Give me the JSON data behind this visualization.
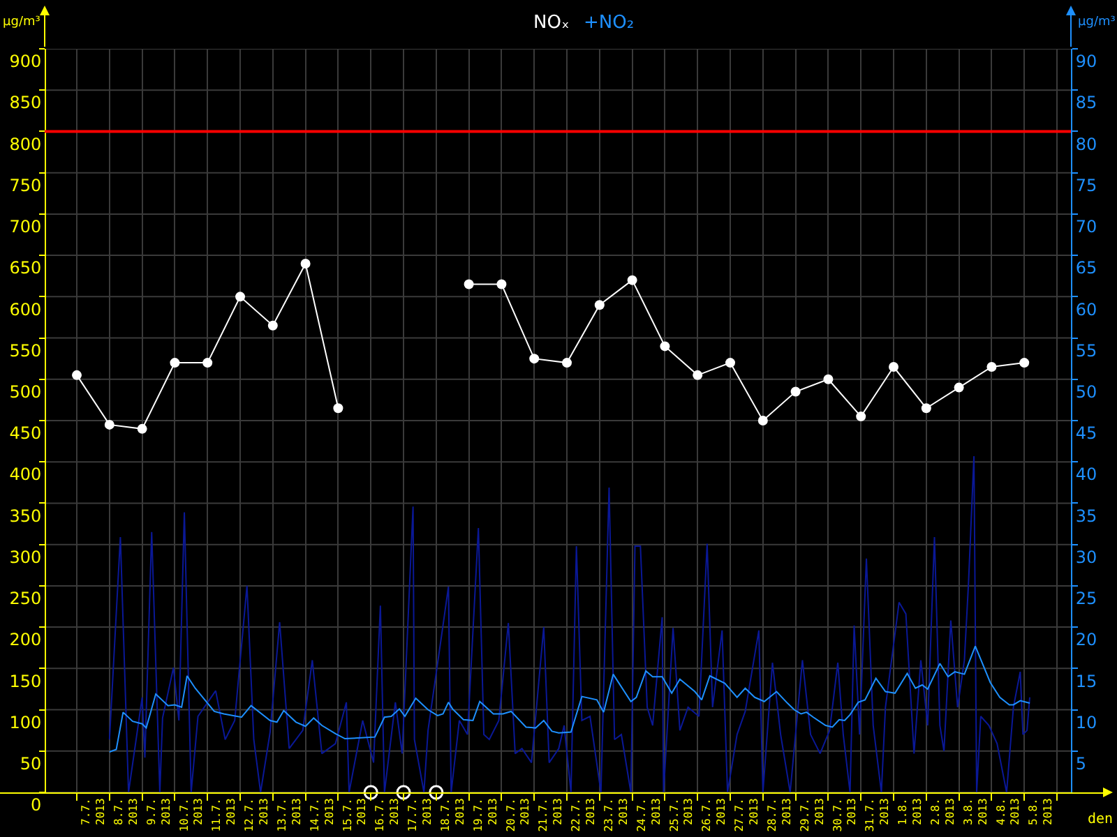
{
  "chart_data": {
    "type": "line",
    "xlabel": "den",
    "ylabel": "µg/m³",
    "y2label": "µg/m³",
    "xlim": [
      "2013-07-04T15:35",
      "2013-08-07T09:50"
    ],
    "xticks": [
      {
        "value": "2013-07-07T12:00",
        "label": "7.7.\n2013"
      },
      {
        "value": "2013-07-08T12:00",
        "label": "8.7.\n2013"
      },
      {
        "value": "2013-07-09T12:00",
        "label": "9.7.\n2013"
      },
      {
        "value": "2013-07-10T12:00",
        "label": "10.7.\n2013"
      },
      {
        "value": "2013-07-11T12:00",
        "label": "11.7.\n2013"
      },
      {
        "value": "2013-07-12T12:00",
        "label": "12.7.\n2013"
      },
      {
        "value": "2013-07-13T12:00",
        "label": "13.7.\n2013"
      },
      {
        "value": "2013-07-14T12:00",
        "label": "14.7.\n2013"
      },
      {
        "value": "2013-07-15T12:00",
        "label": "15.7.\n2013"
      },
      {
        "value": "2013-07-16T12:00",
        "label": "16.7.\n2013"
      },
      {
        "value": "2013-07-17T12:00",
        "label": "17.7.\n2013"
      },
      {
        "value": "2013-07-18T12:00",
        "label": "18.7.\n2013"
      },
      {
        "value": "2013-07-19T12:00",
        "label": "19.7.\n2013"
      },
      {
        "value": "2013-07-20T12:00",
        "label": "20.7.\n2013"
      },
      {
        "value": "2013-07-21T12:00",
        "label": "21.7.\n2013"
      },
      {
        "value": "2013-07-22T12:00",
        "label": "22.7.\n2013"
      },
      {
        "value": "2013-07-23T12:00",
        "label": "23.7.\n2013"
      },
      {
        "value": "2013-07-24T12:00",
        "label": "24.7.\n2013"
      },
      {
        "value": "2013-07-25T12:00",
        "label": "25.7.\n2013"
      },
      {
        "value": "2013-07-26T12:00",
        "label": "26.7.\n2013"
      },
      {
        "value": "2013-07-27T12:00",
        "label": "27.7.\n2013"
      },
      {
        "value": "2013-07-28T12:00",
        "label": "28.7.\n2013"
      },
      {
        "value": "2013-07-29T12:00",
        "label": "29.7.\n2013"
      },
      {
        "value": "2013-07-30T12:00",
        "label": "30.7.\n2013"
      },
      {
        "value": "2013-07-31T12:00",
        "label": "31.7.\n2013"
      },
      {
        "value": "2013-08-01T12:00",
        "label": "1.8.\n2013"
      },
      {
        "value": "2013-08-02T12:00",
        "label": "2.8.\n2013"
      },
      {
        "value": "2013-08-03T12:00",
        "label": "3.8.\n2013"
      },
      {
        "value": "2013-08-04T12:00",
        "label": "4.8.\n2013"
      },
      {
        "value": "2013-08-05T12:00",
        "label": "5.8.\n2013"
      }
    ],
    "ylim": [
      0,
      900
    ],
    "yticks": [
      0,
      50,
      100,
      150,
      200,
      250,
      300,
      350,
      400,
      450,
      500,
      550,
      600,
      650,
      700,
      750,
      800,
      850,
      900
    ],
    "y2lim": [
      0,
      90
    ],
    "y2ticks": [
      5,
      10,
      15,
      20,
      25,
      30,
      35,
      40,
      45,
      50,
      55,
      60,
      65,
      70,
      75,
      80,
      85,
      90
    ],
    "grid": true,
    "ref_lines": [
      {
        "axis": "y",
        "value": 800,
        "color": "#ff0000"
      }
    ],
    "series": [
      {
        "axis": "y2",
        "color": "#0a1896",
        "marker": "none",
        "x": [
          "2013-07-08T00:00",
          "2013-07-08T08:00",
          "2013-07-08T14:00",
          "2013-07-09T00:00",
          "2013-07-09T02:00",
          "2013-07-09T07:00",
          "2013-07-09T13:00",
          "2013-07-09T15:00",
          "2013-07-09T23:00",
          "2013-07-10T03:00",
          "2013-07-10T07:00",
          "2013-07-10T12:00",
          "2013-07-10T17:00",
          "2013-07-11T06:00",
          "2013-07-11T13:00",
          "2013-07-11T20:00",
          "2013-07-12T05:00",
          "2013-07-12T10:00",
          "2013-07-12T15:00",
          "2013-07-12T22:00",
          "2013-07-13T05:00",
          "2013-07-13T12:00",
          "2013-07-13T22:00",
          "2013-07-14T05:00",
          "2013-07-14T12:00",
          "2013-07-14T22:00",
          "2013-07-15T06:00",
          "2013-07-15T08:00",
          "2013-07-15T18:00",
          "2013-07-16T02:00",
          "2013-07-16T07:00",
          "2013-07-16T10:00",
          "2013-07-16T18:00",
          "2013-07-16T23:00",
          "2013-07-17T07:00",
          "2013-07-17T08:00",
          "2013-07-17T15:00",
          "2013-07-17T18:00",
          "2013-07-18T05:00",
          "2013-07-18T09:00",
          "2013-07-18T11:00",
          "2013-07-18T17:00",
          "2013-07-18T23:00",
          "2013-07-19T07:00",
          "2013-07-19T11:00",
          "2013-07-19T15:00",
          "2013-07-19T22:00",
          "2013-07-20T05:00",
          "2013-07-20T10:00",
          "2013-07-20T15:00",
          "2013-07-20T22:00",
          "2013-07-21T07:00",
          "2013-07-21T11:00",
          "2013-07-21T18:00",
          "2013-07-21T22:00",
          "2013-07-22T03:00",
          "2013-07-22T07:00",
          "2013-07-22T11:00",
          "2013-07-22T17:00",
          "2013-07-23T01:00",
          "2013-07-23T07:00",
          "2013-07-23T11:00",
          "2013-07-23T16:00",
          "2013-07-23T23:00",
          "2013-07-24T02:00",
          "2013-07-24T06:00",
          "2013-07-24T11:00",
          "2013-07-24T15:00",
          "2013-07-24T22:00",
          "2013-07-24T23:00",
          "2013-07-25T06:00",
          "2013-07-25T11:00",
          "2013-07-25T17:00",
          "2013-07-26T01:00",
          "2013-07-26T07:00",
          "2013-07-26T11:00",
          "2013-07-26T18:00",
          "2013-07-26T22:00",
          "2013-07-27T05:00",
          "2013-07-27T11:00",
          "2013-07-27T21:00",
          "2013-07-28T00:00",
          "2013-07-28T07:00",
          "2013-07-28T13:00",
          "2013-07-28T20:00",
          "2013-07-29T05:00",
          "2013-07-29T11:00",
          "2013-07-29T18:00",
          "2013-07-30T01:00",
          "2013-07-30T07:00",
          "2013-07-30T11:00",
          "2013-07-30T16:00",
          "2013-07-30T19:00",
          "2013-07-30T23:00",
          "2013-07-31T04:00",
          "2013-07-31T09:00",
          "2013-07-31T15:00",
          "2013-07-31T18:00",
          "2013-08-01T04:00",
          "2013-08-01T09:00",
          "2013-08-01T15:00",
          "2013-08-01T20:00",
          "2013-08-02T01:00",
          "2013-08-02T06:00",
          "2013-08-02T10:00",
          "2013-08-02T13:00",
          "2013-08-02T18:00",
          "2013-08-02T23:00",
          "2013-08-03T04:00",
          "2013-08-03T07:00",
          "2013-08-03T11:00",
          "2013-08-03T13:00",
          "2013-08-03T16:00",
          "2013-08-03T22:00",
          "2013-08-04T04:00",
          "2013-08-04T11:00",
          "2013-08-04T16:00",
          "2013-08-04T21:00",
          "2013-08-04T23:00",
          "2013-08-05T02:00",
          "2013-08-05T04:00"
        ],
        "values": [
          6.4,
          30.9,
          0,
          11.5,
          4.2,
          31.5,
          0,
          9,
          15.1,
          8.7,
          33.9,
          0,
          9.2,
          12.3,
          6.4,
          8.7,
          25,
          6.4,
          0,
          7.3,
          20.6,
          5.3,
          7.5,
          16,
          4.7,
          5.9,
          10.9,
          0,
          8.7,
          3.6,
          22.6,
          0,
          10.9,
          4.7,
          34.6,
          6.4,
          0,
          7.5,
          20.2,
          24.9,
          0,
          8.7,
          7,
          32,
          7,
          6.4,
          8.7,
          20.5,
          4.7,
          5.3,
          3.6,
          20,
          3.6,
          5.3,
          8.1,
          0,
          29.8,
          8.7,
          9.2,
          0,
          36.9,
          6.4,
          7,
          0,
          29.8,
          29.8,
          10.3,
          8.1,
          21.2,
          0,
          19.9,
          7.5,
          10.3,
          9.2,
          30.1,
          10.3,
          19.6,
          0,
          7,
          9.8,
          19.6,
          0,
          15.7,
          7,
          0,
          16,
          7,
          4.7,
          7.5,
          15.7,
          7,
          0,
          20.2,
          7,
          28.3,
          8.1,
          0,
          10.3,
          23,
          21.6,
          4.7,
          16,
          8.1,
          30.9,
          8.1,
          5,
          20.8,
          10.3,
          16,
          25.3,
          40.7,
          0,
          9.2,
          8.1,
          5.9,
          0,
          10.3,
          14.6,
          7,
          7.5,
          11.5
        ]
      },
      {
        "name": "+NO₂",
        "axis": "y2",
        "color": "#1e90ff",
        "marker": "none",
        "x": [
          "2013-07-08T00:00",
          "2013-07-08T05:00",
          "2013-07-08T10:00",
          "2013-07-08T17:00",
          "2013-07-09T00:00",
          "2013-07-09T03:00",
          "2013-07-09T10:00",
          "2013-07-09T19:00",
          "2013-07-10T00:00",
          "2013-07-10T05:00",
          "2013-07-10T09:00",
          "2013-07-10T15:00",
          "2013-07-11T05:00",
          "2013-07-11T12:00",
          "2013-07-12T01:00",
          "2013-07-12T08:00",
          "2013-07-12T22:00",
          "2013-07-13T03:00",
          "2013-07-13T08:00",
          "2013-07-13T17:00",
          "2013-07-14T00:00",
          "2013-07-14T06:00",
          "2013-07-14T12:00",
          "2013-07-14T22:00",
          "2013-07-15T05:00",
          "2013-07-16T03:00",
          "2013-07-16T10:00",
          "2013-07-16T15:00",
          "2013-07-16T21:00",
          "2013-07-17T01:00",
          "2013-07-17T05:00",
          "2013-07-17T09:00",
          "2013-07-17T18:00",
          "2013-07-18T01:00",
          "2013-07-18T05:00",
          "2013-07-18T09:00",
          "2013-07-18T12:00",
          "2013-07-18T20:00",
          "2013-07-19T03:00",
          "2013-07-19T08:00",
          "2013-07-19T18:00",
          "2013-07-20T01:00",
          "2013-07-20T07:00",
          "2013-07-20T18:00",
          "2013-07-21T01:00",
          "2013-07-21T07:00",
          "2013-07-21T13:00",
          "2013-07-21T18:00",
          "2013-07-22T03:00",
          "2013-07-22T11:00",
          "2013-07-22T22:00",
          "2013-07-23T03:00",
          "2013-07-23T10:00",
          "2013-07-23T23:00",
          "2013-07-24T03:00",
          "2013-07-24T10:00",
          "2013-07-24T15:00",
          "2013-07-24T22:00",
          "2013-07-25T05:00",
          "2013-07-25T11:00",
          "2013-07-25T22:00",
          "2013-07-26T03:00",
          "2013-07-26T09:00",
          "2013-07-26T20:00",
          "2013-07-27T05:00",
          "2013-07-27T11:00",
          "2013-07-27T18:00",
          "2013-07-28T01:00",
          "2013-07-28T10:00",
          "2013-07-28T18:00",
          "2013-07-28T23:00",
          "2013-07-29T04:00",
          "2013-07-29T08:00",
          "2013-07-29T13:00",
          "2013-07-29T22:00",
          "2013-07-30T03:00",
          "2013-07-30T08:00",
          "2013-07-30T12:00",
          "2013-07-30T16:00",
          "2013-07-30T22:00",
          "2013-07-31T03:00",
          "2013-07-31T11:00",
          "2013-07-31T18:00",
          "2013-08-01T01:00",
          "2013-08-01T10:00",
          "2013-08-01T16:00",
          "2013-08-01T21:00",
          "2013-08-02T01:00",
          "2013-08-02T10:00",
          "2013-08-02T16:00",
          "2013-08-02T21:00",
          "2013-08-03T04:00",
          "2013-08-03T12:00",
          "2013-08-03T23:00",
          "2013-08-04T06:00",
          "2013-08-04T13:00",
          "2013-08-04T16:00",
          "2013-08-04T21:00",
          "2013-08-05T04:00"
        ],
        "values": [
          4.9,
          5.2,
          9.7,
          8.6,
          8.3,
          7.8,
          11.9,
          10.5,
          10.6,
          10.3,
          14.1,
          12.6,
          9.8,
          9.5,
          9.1,
          10.5,
          8.7,
          8.5,
          9.9,
          8.5,
          8,
          9,
          8.1,
          7.1,
          6.5,
          6.7,
          9.1,
          9.2,
          10.1,
          9.2,
          10.3,
          11.4,
          10,
          9.3,
          9.5,
          10.9,
          10.1,
          8.8,
          8.7,
          11,
          9.5,
          9.5,
          9.8,
          7.9,
          7.8,
          8.7,
          7.4,
          7.2,
          7.3,
          11.6,
          11.2,
          9.7,
          14.3,
          11,
          11.5,
          14.7,
          14,
          14,
          12,
          13.7,
          12.2,
          11.2,
          14.1,
          13.2,
          11.5,
          12.6,
          11.5,
          11,
          12.2,
          10.8,
          10,
          9.5,
          9.7,
          9.1,
          8.1,
          7.9,
          8.8,
          8.7,
          9.4,
          10.9,
          11.2,
          13.8,
          12.2,
          12,
          14.4,
          12.6,
          13,
          12.5,
          15.6,
          14,
          14.6,
          14.3,
          17.7,
          13.3,
          11.5,
          10.6,
          10.6,
          11.1,
          10.8
        ]
      },
      {
        "name": "NOₓ",
        "color": "#ffffff",
        "marker": "circle",
        "x": [
          "2013-07-07",
          "2013-07-08",
          "2013-07-09",
          "2013-07-10",
          "2013-07-11",
          "2013-07-12",
          "2013-07-13",
          "2013-07-14",
          "2013-07-15",
          "2013-07-16",
          "2013-07-17",
          "2013-07-18",
          "2013-07-19",
          "2013-07-20",
          "2013-07-21",
          "2013-07-22",
          "2013-07-23",
          "2013-07-24",
          "2013-07-25",
          "2013-07-26",
          "2013-07-27",
          "2013-07-28",
          "2013-07-29",
          "2013-07-30",
          "2013-07-31",
          "2013-08-01",
          "2013-08-02",
          "2013-08-03",
          "2013-08-04",
          "2013-08-05"
        ],
        "values": [
          505,
          445,
          440,
          520,
          520,
          600,
          565,
          640,
          465,
          null,
          null,
          null,
          615,
          615,
          525,
          520,
          590,
          620,
          540,
          505,
          520,
          450,
          485,
          500,
          455,
          515,
          465,
          490,
          515,
          520
        ]
      },
      {
        "type": "scatter",
        "color": "#ffffff",
        "marker": "circle",
        "x": [
          "2013-07-16",
          "2013-07-17",
          "2013-07-18"
        ],
        "values": [
          0,
          0,
          0
        ]
      }
    ]
  }
}
